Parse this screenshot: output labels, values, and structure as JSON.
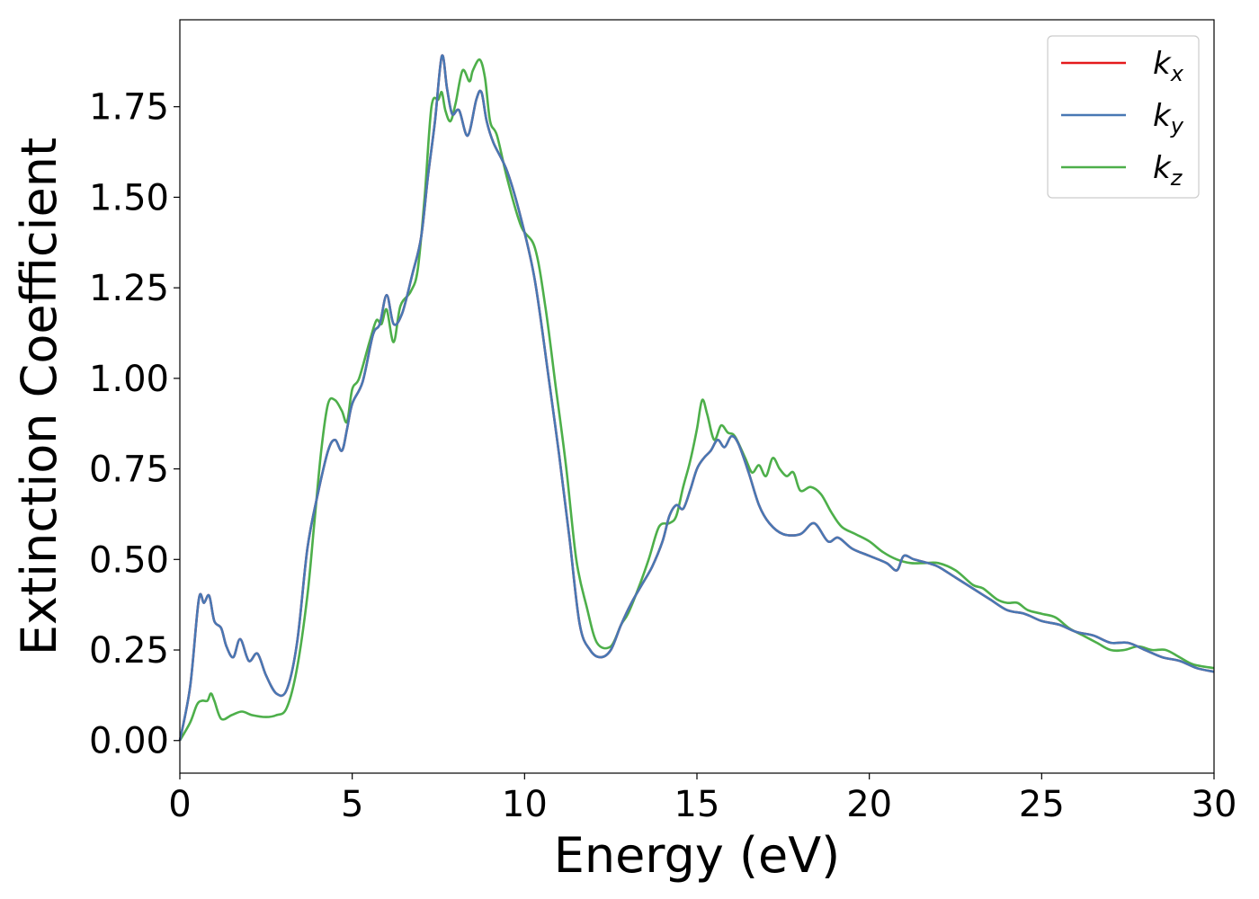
{
  "chart_data": {
    "type": "line",
    "title": "",
    "xlabel": "Energy (eV)",
    "ylabel": "Extinction Coefficient",
    "xlim": [
      0,
      30
    ],
    "ylim": [
      -0.09,
      1.99
    ],
    "x_ticks": [
      0,
      5,
      10,
      15,
      20,
      25,
      30
    ],
    "x_tick_labels": [
      "0",
      "5",
      "10",
      "15",
      "20",
      "25",
      "30"
    ],
    "y_ticks": [
      0.0,
      0.25,
      0.5,
      0.75,
      1.0,
      1.25,
      1.5,
      1.75
    ],
    "y_tick_labels": [
      "0.00",
      "0.25",
      "0.50",
      "0.75",
      "1.00",
      "1.25",
      "1.50",
      "1.75"
    ],
    "grid": false,
    "legend_position": "top-right",
    "series": [
      {
        "name": "k_x",
        "label_base": "k",
        "label_sub": "x",
        "color": "#e41a1c",
        "x": [
          0,
          0.3,
          0.55,
          0.7,
          0.85,
          1.0,
          1.2,
          1.35,
          1.55,
          1.75,
          2.0,
          2.25,
          2.5,
          2.8,
          3.1,
          3.4,
          3.7,
          4.0,
          4.3,
          4.5,
          4.7,
          4.85,
          5.0,
          5.3,
          5.6,
          5.8,
          6.0,
          6.2,
          6.45,
          6.75,
          7.0,
          7.2,
          7.4,
          7.6,
          7.75,
          7.9,
          8.1,
          8.35,
          8.6,
          8.75,
          8.9,
          9.1,
          9.5,
          9.9,
          10.3,
          10.7,
          11.0,
          11.3,
          11.6,
          11.9,
          12.2,
          12.5,
          12.8,
          13.1,
          13.4,
          13.7,
          14.0,
          14.2,
          14.4,
          14.6,
          14.8,
          15.0,
          15.2,
          15.4,
          15.6,
          15.8,
          16.0,
          16.2,
          16.5,
          16.8,
          17.1,
          17.5,
          18.0,
          18.4,
          18.8,
          19.1,
          19.5,
          20.0,
          20.5,
          20.8,
          21.0,
          21.3,
          21.7,
          22.0,
          22.5,
          23.0,
          23.5,
          24.0,
          24.5,
          25.0,
          25.5,
          26.0,
          26.5,
          27.0,
          27.5,
          28.0,
          28.5,
          29.0,
          29.5,
          30.0
        ],
        "y": [
          0.0,
          0.15,
          0.39,
          0.38,
          0.4,
          0.33,
          0.31,
          0.26,
          0.23,
          0.28,
          0.22,
          0.24,
          0.18,
          0.13,
          0.14,
          0.27,
          0.53,
          0.68,
          0.8,
          0.83,
          0.8,
          0.86,
          0.93,
          0.99,
          1.12,
          1.15,
          1.23,
          1.15,
          1.18,
          1.29,
          1.39,
          1.56,
          1.71,
          1.89,
          1.8,
          1.73,
          1.74,
          1.67,
          1.77,
          1.79,
          1.71,
          1.65,
          1.57,
          1.44,
          1.27,
          1.0,
          0.79,
          0.56,
          0.32,
          0.25,
          0.23,
          0.25,
          0.32,
          0.38,
          0.43,
          0.48,
          0.55,
          0.62,
          0.65,
          0.64,
          0.69,
          0.75,
          0.78,
          0.8,
          0.83,
          0.81,
          0.84,
          0.82,
          0.74,
          0.65,
          0.6,
          0.57,
          0.57,
          0.6,
          0.55,
          0.56,
          0.53,
          0.51,
          0.49,
          0.47,
          0.51,
          0.5,
          0.49,
          0.48,
          0.45,
          0.42,
          0.39,
          0.36,
          0.35,
          0.33,
          0.32,
          0.3,
          0.29,
          0.27,
          0.27,
          0.25,
          0.23,
          0.22,
          0.2,
          0.19
        ]
      },
      {
        "name": "k_y",
        "label_base": "k",
        "label_sub": "y",
        "color": "#4878b4",
        "x": [
          0,
          0.3,
          0.55,
          0.7,
          0.85,
          1.0,
          1.2,
          1.35,
          1.55,
          1.75,
          2.0,
          2.25,
          2.5,
          2.8,
          3.1,
          3.4,
          3.7,
          4.0,
          4.3,
          4.5,
          4.7,
          4.85,
          5.0,
          5.3,
          5.6,
          5.8,
          6.0,
          6.2,
          6.45,
          6.75,
          7.0,
          7.2,
          7.4,
          7.6,
          7.75,
          7.9,
          8.1,
          8.35,
          8.6,
          8.75,
          8.9,
          9.1,
          9.5,
          9.9,
          10.3,
          10.7,
          11.0,
          11.3,
          11.6,
          11.9,
          12.2,
          12.5,
          12.8,
          13.1,
          13.4,
          13.7,
          14.0,
          14.2,
          14.4,
          14.6,
          14.8,
          15.0,
          15.2,
          15.4,
          15.6,
          15.8,
          16.0,
          16.2,
          16.5,
          16.8,
          17.1,
          17.5,
          18.0,
          18.4,
          18.8,
          19.1,
          19.5,
          20.0,
          20.5,
          20.8,
          21.0,
          21.3,
          21.7,
          22.0,
          22.5,
          23.0,
          23.5,
          24.0,
          24.5,
          25.0,
          25.5,
          26.0,
          26.5,
          27.0,
          27.5,
          28.0,
          28.5,
          29.0,
          29.5,
          30.0
        ],
        "y": [
          0.0,
          0.15,
          0.39,
          0.38,
          0.4,
          0.33,
          0.31,
          0.26,
          0.23,
          0.28,
          0.22,
          0.24,
          0.18,
          0.13,
          0.14,
          0.27,
          0.53,
          0.68,
          0.8,
          0.83,
          0.8,
          0.86,
          0.93,
          0.99,
          1.12,
          1.15,
          1.23,
          1.15,
          1.18,
          1.29,
          1.39,
          1.56,
          1.71,
          1.89,
          1.8,
          1.73,
          1.74,
          1.67,
          1.77,
          1.79,
          1.71,
          1.65,
          1.57,
          1.44,
          1.27,
          1.0,
          0.79,
          0.56,
          0.32,
          0.25,
          0.23,
          0.25,
          0.32,
          0.38,
          0.43,
          0.48,
          0.55,
          0.62,
          0.65,
          0.64,
          0.69,
          0.75,
          0.78,
          0.8,
          0.83,
          0.81,
          0.84,
          0.82,
          0.74,
          0.65,
          0.6,
          0.57,
          0.57,
          0.6,
          0.55,
          0.56,
          0.53,
          0.51,
          0.49,
          0.47,
          0.51,
          0.5,
          0.49,
          0.48,
          0.45,
          0.42,
          0.39,
          0.36,
          0.35,
          0.33,
          0.32,
          0.3,
          0.29,
          0.27,
          0.27,
          0.25,
          0.23,
          0.22,
          0.2,
          0.19
        ]
      },
      {
        "name": "k_z",
        "label_base": "k",
        "label_sub": "z",
        "color": "#4daf4a",
        "x": [
          0,
          0.3,
          0.5,
          0.65,
          0.8,
          0.9,
          1.0,
          1.2,
          1.5,
          1.8,
          2.1,
          2.5,
          2.8,
          3.1,
          3.4,
          3.7,
          3.9,
          4.1,
          4.3,
          4.5,
          4.7,
          4.85,
          5.0,
          5.2,
          5.5,
          5.7,
          5.85,
          6.0,
          6.2,
          6.4,
          6.7,
          6.9,
          7.1,
          7.3,
          7.5,
          7.6,
          7.7,
          7.85,
          8.0,
          8.2,
          8.4,
          8.5,
          8.7,
          8.85,
          9.0,
          9.2,
          9.5,
          9.9,
          10.3,
          10.6,
          10.9,
          11.2,
          11.5,
          11.8,
          12.1,
          12.5,
          12.8,
          13.0,
          13.3,
          13.6,
          13.9,
          14.2,
          14.4,
          14.6,
          14.8,
          15.0,
          15.15,
          15.3,
          15.5,
          15.7,
          15.9,
          16.1,
          16.4,
          16.6,
          16.8,
          17.0,
          17.2,
          17.4,
          17.6,
          17.8,
          18.0,
          18.3,
          18.6,
          18.9,
          19.2,
          19.6,
          20.0,
          20.4,
          20.8,
          21.2,
          21.6,
          22.0,
          22.5,
          23.0,
          23.3,
          23.7,
          24.0,
          24.3,
          24.6,
          25.0,
          25.4,
          25.8,
          26.2,
          26.6,
          27.0,
          27.4,
          27.8,
          28.2,
          28.6,
          29.0,
          29.4,
          30.0
        ],
        "y": [
          0.0,
          0.05,
          0.1,
          0.11,
          0.11,
          0.13,
          0.11,
          0.06,
          0.07,
          0.08,
          0.07,
          0.065,
          0.07,
          0.09,
          0.2,
          0.4,
          0.6,
          0.8,
          0.93,
          0.94,
          0.91,
          0.88,
          0.97,
          1.0,
          1.1,
          1.16,
          1.15,
          1.19,
          1.1,
          1.2,
          1.24,
          1.3,
          1.5,
          1.75,
          1.77,
          1.79,
          1.74,
          1.71,
          1.76,
          1.85,
          1.82,
          1.85,
          1.88,
          1.83,
          1.71,
          1.67,
          1.55,
          1.42,
          1.36,
          1.2,
          0.98,
          0.76,
          0.5,
          0.37,
          0.27,
          0.26,
          0.32,
          0.35,
          0.42,
          0.5,
          0.59,
          0.6,
          0.62,
          0.7,
          0.77,
          0.86,
          0.94,
          0.9,
          0.83,
          0.87,
          0.85,
          0.84,
          0.78,
          0.74,
          0.76,
          0.73,
          0.78,
          0.75,
          0.73,
          0.74,
          0.69,
          0.7,
          0.68,
          0.63,
          0.59,
          0.57,
          0.55,
          0.52,
          0.5,
          0.49,
          0.49,
          0.49,
          0.47,
          0.43,
          0.42,
          0.39,
          0.38,
          0.38,
          0.36,
          0.35,
          0.34,
          0.31,
          0.29,
          0.27,
          0.25,
          0.25,
          0.26,
          0.25,
          0.25,
          0.23,
          0.21,
          0.2
        ]
      }
    ]
  }
}
